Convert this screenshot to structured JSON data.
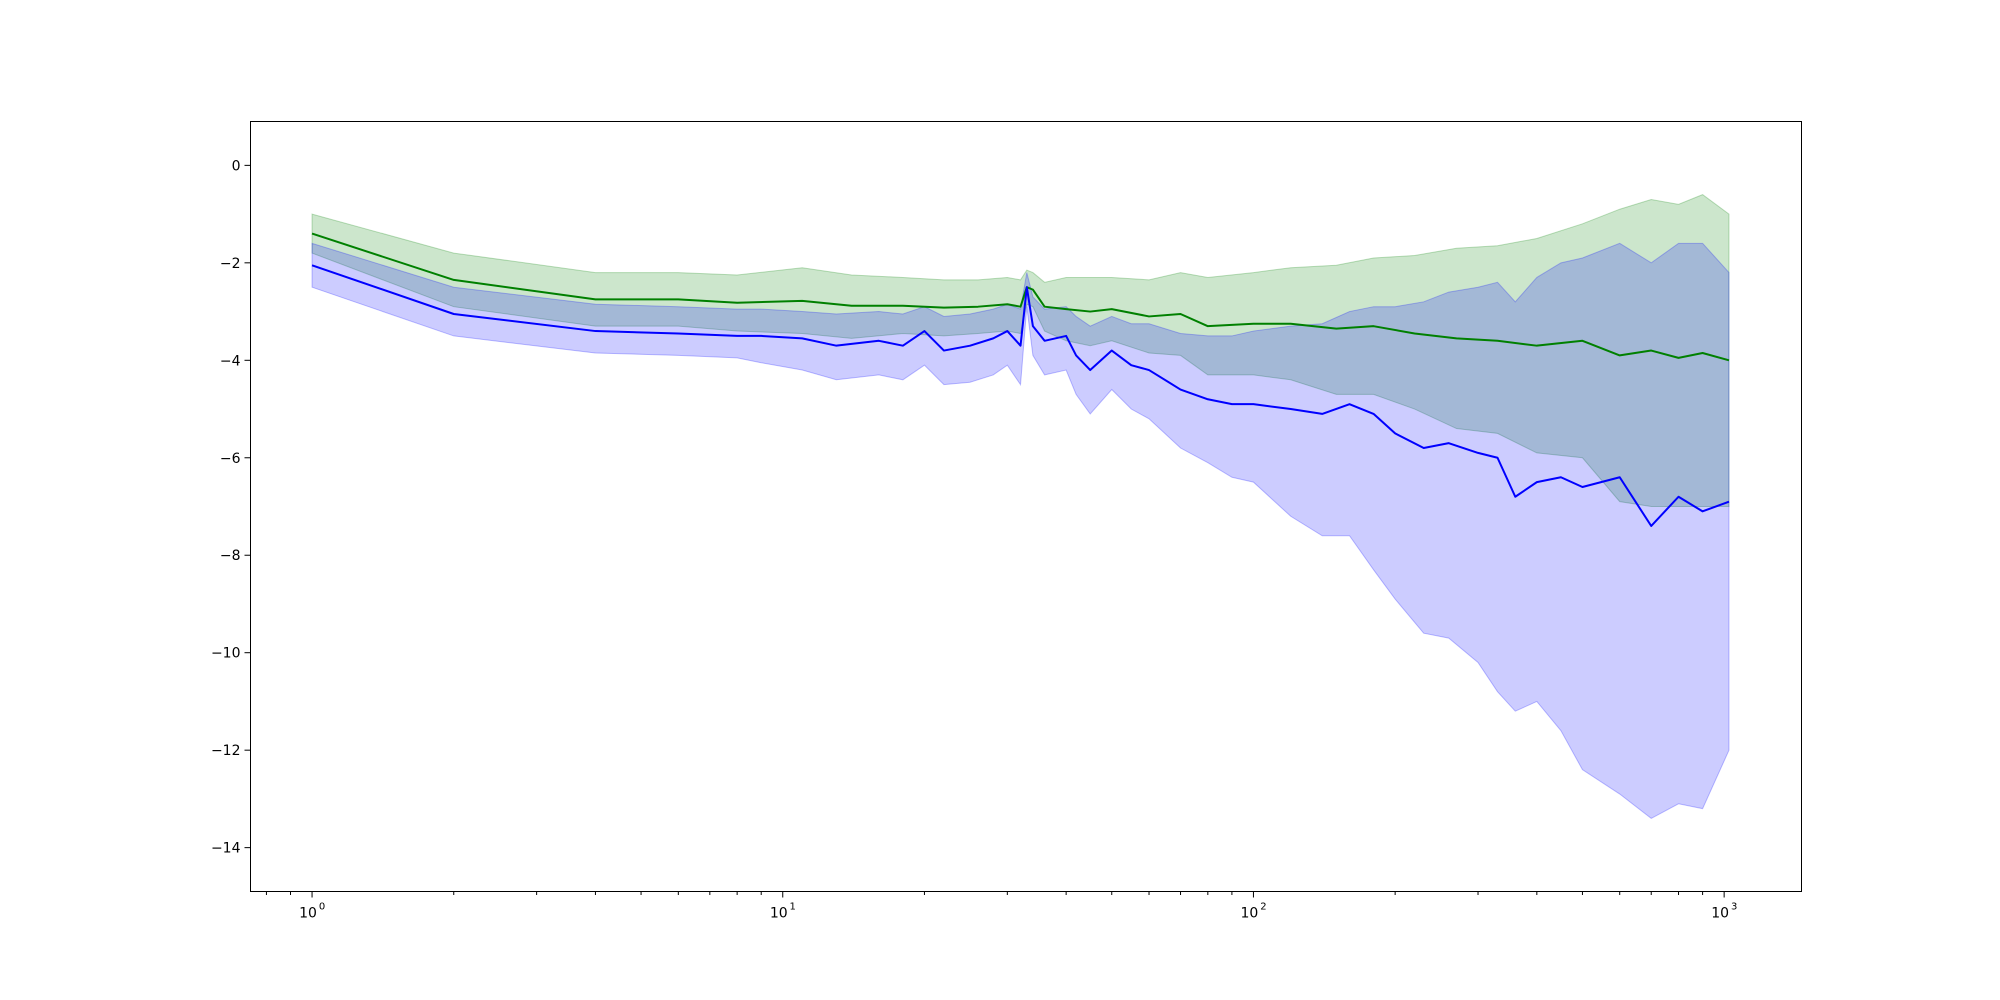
{
  "chart_data": {
    "type": "line",
    "x_scale": "log",
    "xlim": [
      0.74,
      1460
    ],
    "ylim": [
      -14.9,
      0.9
    ],
    "grid": false,
    "legend": "none",
    "x_ticks": [
      {
        "value": 1,
        "base": "10",
        "exp": "0"
      },
      {
        "value": 10,
        "base": "10",
        "exp": "1"
      },
      {
        "value": 100,
        "base": "10",
        "exp": "2"
      },
      {
        "value": 1000,
        "base": "10",
        "exp": "3"
      }
    ],
    "y_ticks": [
      {
        "value": 0,
        "label": "0"
      },
      {
        "value": -2,
        "label": "−2"
      },
      {
        "value": -4,
        "label": "−4"
      },
      {
        "value": -6,
        "label": "−6"
      },
      {
        "value": -8,
        "label": "−8"
      },
      {
        "value": -10,
        "label": "−10"
      },
      {
        "value": -12,
        "label": "−12"
      },
      {
        "value": -14,
        "label": "−14"
      }
    ],
    "series": [
      {
        "color": "#008000",
        "band_color": "#008000",
        "band_opacity": 0.2,
        "x": [
          1,
          2,
          4,
          6,
          8,
          11,
          14,
          18,
          22,
          26,
          30,
          32,
          33,
          34,
          36,
          40,
          45,
          50,
          60,
          70,
          80,
          100,
          120,
          150,
          180,
          220,
          270,
          330,
          400,
          500,
          600,
          700,
          800,
          900,
          1024
        ],
        "y": [
          -1.4,
          -2.35,
          -2.75,
          -2.75,
          -2.82,
          -2.78,
          -2.88,
          -2.88,
          -2.92,
          -2.9,
          -2.85,
          -2.9,
          -2.5,
          -2.55,
          -2.9,
          -2.95,
          -3.0,
          -2.95,
          -3.1,
          -3.05,
          -3.3,
          -3.25,
          -3.25,
          -3.35,
          -3.3,
          -3.45,
          -3.55,
          -3.6,
          -3.7,
          -3.6,
          -3.9,
          -3.8,
          -3.95,
          -3.85,
          -4.0
        ],
        "upper": [
          -1.0,
          -1.8,
          -2.2,
          -2.2,
          -2.25,
          -2.1,
          -2.25,
          -2.3,
          -2.35,
          -2.35,
          -2.3,
          -2.35,
          -2.15,
          -2.2,
          -2.4,
          -2.3,
          -2.3,
          -2.3,
          -2.35,
          -2.2,
          -2.3,
          -2.2,
          -2.1,
          -2.05,
          -1.9,
          -1.85,
          -1.7,
          -1.65,
          -1.5,
          -1.2,
          -0.9,
          -0.7,
          -0.8,
          -0.6,
          -1.0
        ],
        "lower": [
          -1.8,
          -2.9,
          -3.3,
          -3.3,
          -3.4,
          -3.45,
          -3.55,
          -3.45,
          -3.5,
          -3.45,
          -3.4,
          -3.45,
          -2.85,
          -2.9,
          -3.4,
          -3.6,
          -3.7,
          -3.6,
          -3.85,
          -3.9,
          -4.3,
          -4.3,
          -4.4,
          -4.7,
          -4.7,
          -5.0,
          -5.4,
          -5.5,
          -5.9,
          -6.0,
          -6.9,
          -7.0,
          -7.0,
          -7.0,
          -7.0
        ]
      },
      {
        "color": "#0000ff",
        "band_color": "#0000ff",
        "band_opacity": 0.2,
        "x": [
          1,
          2,
          4,
          6,
          8,
          9,
          11,
          13,
          16,
          18,
          20,
          22,
          25,
          28,
          30,
          32,
          33,
          34,
          36,
          40,
          42,
          45,
          50,
          55,
          60,
          70,
          80,
          90,
          100,
          120,
          140,
          160,
          180,
          200,
          230,
          260,
          300,
          330,
          360,
          400,
          450,
          500,
          600,
          700,
          800,
          900,
          1024
        ],
        "y": [
          -2.05,
          -3.05,
          -3.4,
          -3.45,
          -3.5,
          -3.5,
          -3.55,
          -3.7,
          -3.6,
          -3.7,
          -3.4,
          -3.8,
          -3.7,
          -3.55,
          -3.4,
          -3.7,
          -2.5,
          -3.3,
          -3.6,
          -3.5,
          -3.9,
          -4.2,
          -3.8,
          -4.1,
          -4.2,
          -4.6,
          -4.8,
          -4.9,
          -4.9,
          -5.0,
          -5.1,
          -4.9,
          -5.1,
          -5.5,
          -5.8,
          -5.7,
          -5.9,
          -6.0,
          -6.8,
          -6.5,
          -6.4,
          -6.6,
          -6.4,
          -7.4,
          -6.8,
          -7.1,
          -6.9
        ],
        "upper": [
          -1.6,
          -2.5,
          -2.85,
          -2.9,
          -2.95,
          -2.95,
          -3.0,
          -3.05,
          -3.0,
          -3.05,
          -2.9,
          -3.1,
          -3.05,
          -2.95,
          -2.85,
          -2.95,
          -2.2,
          -2.7,
          -2.95,
          -2.9,
          -3.1,
          -3.3,
          -3.1,
          -3.25,
          -3.25,
          -3.45,
          -3.5,
          -3.5,
          -3.4,
          -3.3,
          -3.25,
          -3.0,
          -2.9,
          -2.9,
          -2.8,
          -2.6,
          -2.5,
          -2.4,
          -2.8,
          -2.3,
          -2.0,
          -1.9,
          -1.6,
          -2.0,
          -1.6,
          -1.6,
          -2.2
        ],
        "lower": [
          -2.5,
          -3.5,
          -3.85,
          -3.9,
          -3.95,
          -4.05,
          -4.2,
          -4.4,
          -4.3,
          -4.4,
          -4.1,
          -4.5,
          -4.45,
          -4.3,
          -4.1,
          -4.5,
          -2.9,
          -3.9,
          -4.3,
          -4.2,
          -4.7,
          -5.1,
          -4.6,
          -5.0,
          -5.2,
          -5.8,
          -6.1,
          -6.4,
          -6.5,
          -7.2,
          -7.6,
          -7.6,
          -8.3,
          -8.9,
          -9.6,
          -9.7,
          -10.2,
          -10.8,
          -11.2,
          -11.0,
          -11.6,
          -12.4,
          -12.9,
          -13.4,
          -13.1,
          -13.2,
          -12.0
        ]
      }
    ]
  }
}
